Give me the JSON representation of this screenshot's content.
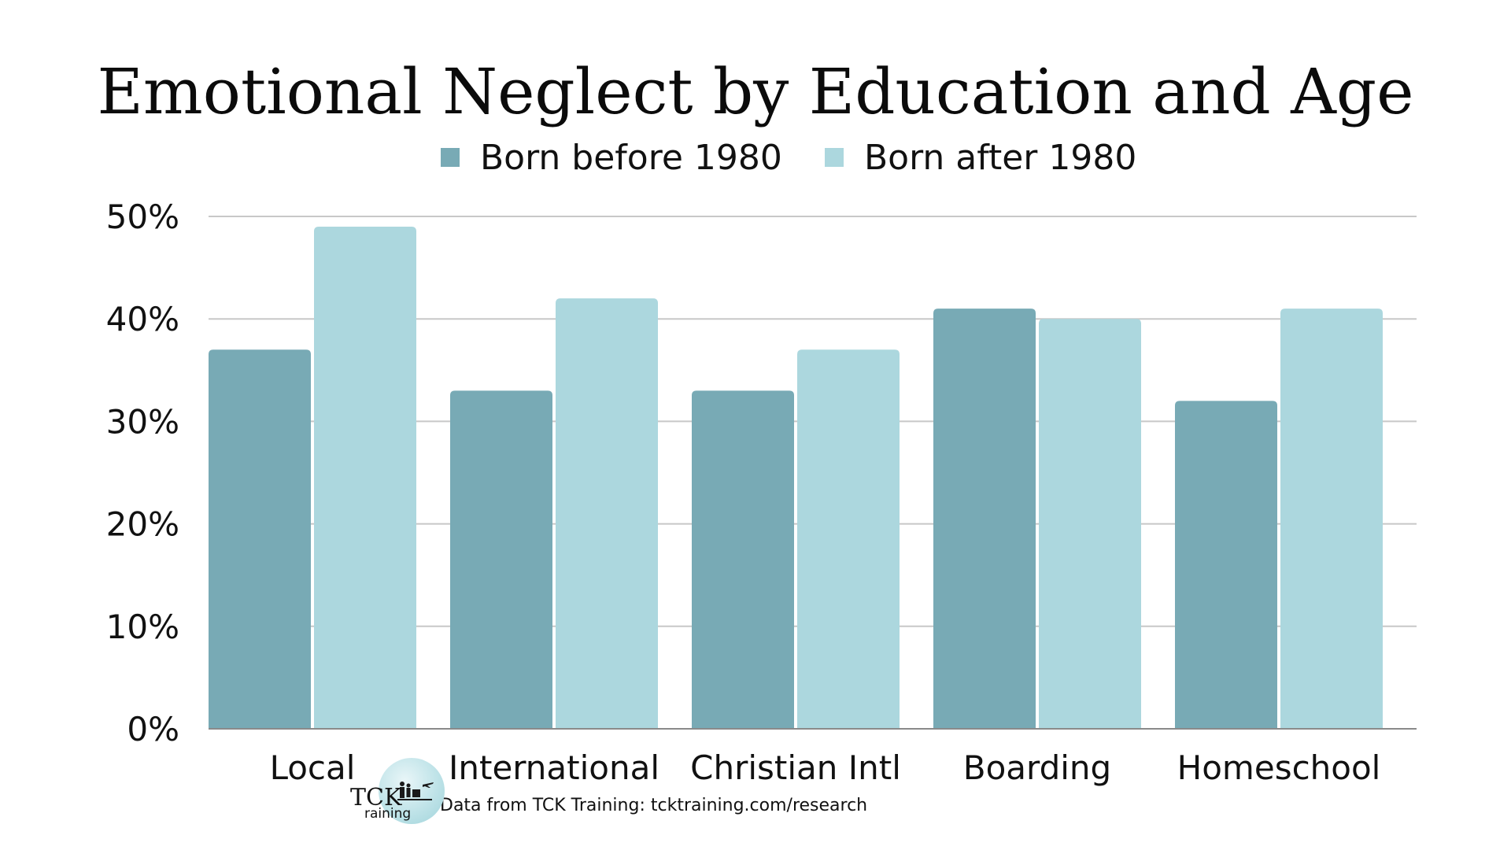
{
  "chart_data": {
    "type": "bar",
    "title": "Emotional Neglect by Education and Age",
    "categories": [
      "Local",
      "International",
      "Christian Intl",
      "Boarding",
      "Homeschool"
    ],
    "series": [
      {
        "name": "Born before 1980",
        "values": [
          37,
          33,
          33,
          41,
          32
        ],
        "color": "#78aab5"
      },
      {
        "name": "Born after 1980",
        "values": [
          49,
          42,
          37,
          40,
          41
        ],
        "color": "#acd7de"
      }
    ],
    "ylim": [
      0,
      50
    ],
    "y_ticks": [
      "0%",
      "10%",
      "20%",
      "30%",
      "40%",
      "50%"
    ],
    "y_tick_values": [
      0,
      10,
      20,
      30,
      40,
      50
    ],
    "y_unit": "%",
    "grid": true,
    "gridline_color": "#c8c8c8",
    "legend_position": "top-center"
  },
  "footer": {
    "logo_word": "TCK",
    "logo_sub": "raining",
    "logo_icon": "family-travel-icon",
    "source": "Data from TCK Training: tcktraining.com/research"
  }
}
